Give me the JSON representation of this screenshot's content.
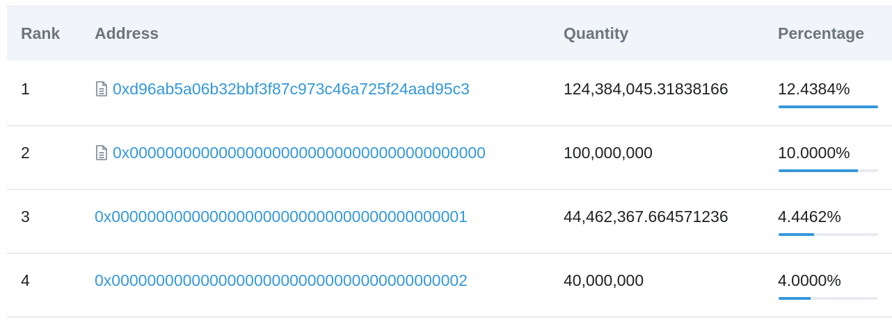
{
  "header": {
    "rank": "Rank",
    "address": "Address",
    "quantity": "Quantity",
    "percentage": "Percentage"
  },
  "colors": {
    "link": "#3498db",
    "bar_fill": "#3498db",
    "bar_track": "#e7eaf0",
    "header_bg": "#f1f4f8"
  },
  "rows": [
    {
      "rank": "1",
      "address": "0xd96ab5a06b32bbf3f87c973c46a725f24aad95c3",
      "is_contract": true,
      "icon": "file-document-icon",
      "quantity": "124,384,045.31838166",
      "percentage": "12.4384%",
      "bar_fraction": 1.0
    },
    {
      "rank": "2",
      "address": "0x0000000000000000000000000000000000000000",
      "is_contract": true,
      "icon": "file-document-icon",
      "quantity": "100,000,000",
      "percentage": "10.0000%",
      "bar_fraction": 0.8
    },
    {
      "rank": "3",
      "address": "0x0000000000000000000000000000000000000001",
      "is_contract": false,
      "quantity": "44,462,367.664571236",
      "percentage": "4.4462%",
      "bar_fraction": 0.36
    },
    {
      "rank": "4",
      "address": "0x0000000000000000000000000000000000000002",
      "is_contract": false,
      "quantity": "40,000,000",
      "percentage": "4.0000%",
      "bar_fraction": 0.32
    }
  ]
}
